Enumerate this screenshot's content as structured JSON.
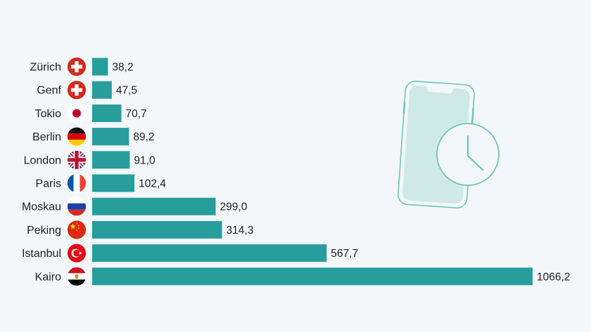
{
  "chart_data": {
    "type": "bar",
    "orientation": "horizontal",
    "categories": [
      "Zürich",
      "Genf",
      "Tokio",
      "Berlin",
      "London",
      "Paris",
      "Moskau",
      "Peking",
      "Istanbul",
      "Kairo"
    ],
    "values": [
      38.2,
      47.5,
      70.7,
      89.2,
      91.0,
      102.4,
      299.0,
      314.3,
      567.7,
      1066.2
    ],
    "value_labels": [
      "38,2",
      "47,5",
      "70,7",
      "89,2",
      "91,0",
      "102,4",
      "299,0",
      "314,3",
      "567,7",
      "1066,2"
    ],
    "flags": [
      "switzerland",
      "switzerland",
      "japan",
      "germany",
      "united-kingdom",
      "france",
      "russia",
      "china",
      "turkey",
      "egypt"
    ],
    "title": "",
    "xlabel": "",
    "ylabel": "",
    "xlim": [
      0,
      1066.2
    ],
    "grid": false,
    "legend": "none",
    "bar_color": "#279e9c"
  },
  "illustration": {
    "icon": "smartphone-clock-icon",
    "color": "#6fc4bf"
  }
}
